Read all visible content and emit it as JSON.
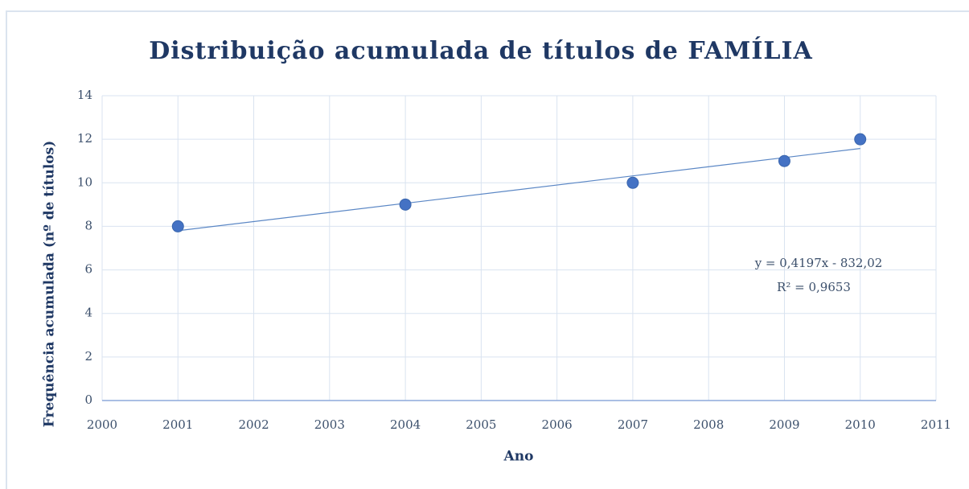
{
  "chart_data": {
    "type": "scatter",
    "title": "Distribuição acumulada de títulos de FAMÍLIA",
    "x_label": "Ano",
    "y_label": "Frequência acumulada (nº de títulos)",
    "x": [
      2001,
      2004,
      2007,
      2009,
      2010
    ],
    "values": [
      8,
      9,
      10,
      11,
      12
    ],
    "color": "#4472c4",
    "xlim": [
      2000,
      2011
    ],
    "xticks": [
      2000,
      2001,
      2002,
      2003,
      2004,
      2005,
      2006,
      2007,
      2008,
      2009,
      2010,
      2011
    ],
    "ylim": [
      0,
      14
    ],
    "yticks": [
      0,
      2,
      4,
      6,
      8,
      10,
      12,
      14
    ],
    "grid": true,
    "trendline": {
      "slope": 0.4197,
      "intercept": -832.02,
      "equation": "y = 0,4197x - 832,02",
      "r_squared": 0.9653,
      "r_squared_label": "R² = 0,9653"
    }
  }
}
